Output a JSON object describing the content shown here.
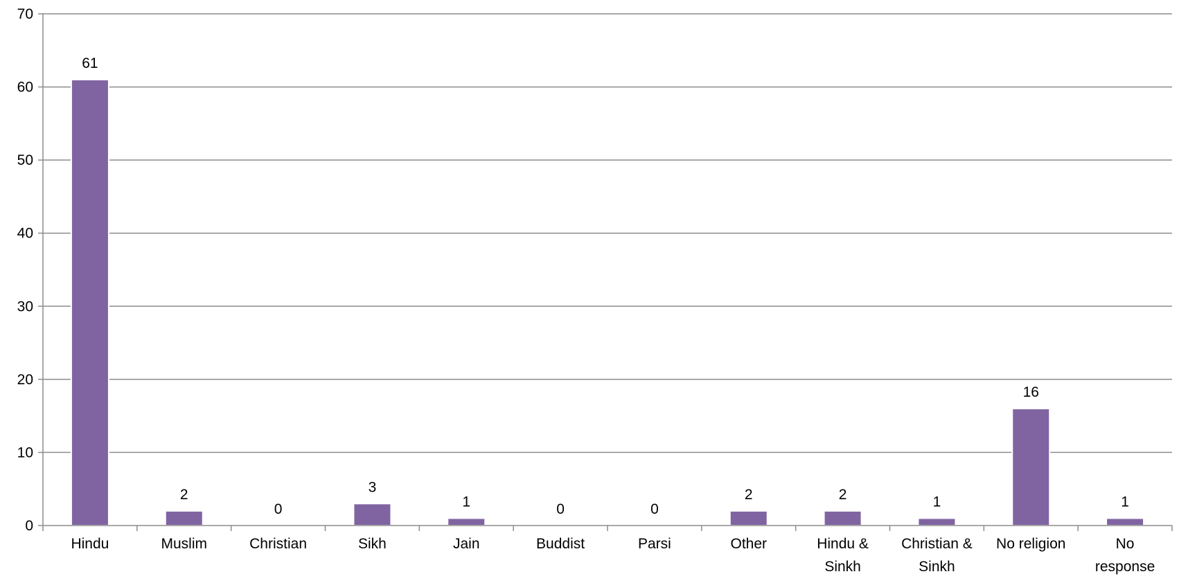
{
  "chart_data": {
    "type": "bar",
    "categories": [
      [
        "Hindu"
      ],
      [
        "Muslim"
      ],
      [
        "Christian"
      ],
      [
        "Sikh"
      ],
      [
        "Jain"
      ],
      [
        "Buddist"
      ],
      [
        "Parsi"
      ],
      [
        "Other"
      ],
      [
        "Hindu &",
        "Sinkh"
      ],
      [
        "Christian &",
        "Sinkh"
      ],
      [
        "No religion"
      ],
      [
        "No",
        "response"
      ]
    ],
    "values": [
      61,
      2,
      0,
      3,
      1,
      0,
      0,
      2,
      2,
      1,
      16,
      1
    ],
    "ylim": [
      0,
      70
    ],
    "yticks": [
      0,
      10,
      20,
      30,
      40,
      50,
      60,
      70
    ],
    "grid": true,
    "legend": "none",
    "bar_color": "#8064a2"
  }
}
